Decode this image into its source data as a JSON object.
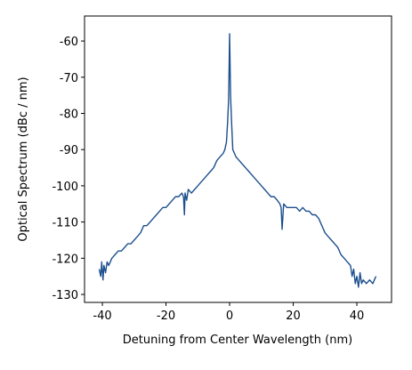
{
  "chart_data": {
    "type": "line",
    "x_label": "Detuning from Center Wavelength (nm)",
    "y_label": "Optical Spectrum  (dBc / nm)",
    "xlim": [
      -45.6,
      50.9
    ],
    "ylim": [
      -132.2,
      -53.1
    ],
    "xticks": [
      -40,
      -20,
      0,
      20,
      40
    ],
    "yticks": [
      -60,
      -70,
      -80,
      -90,
      -100,
      -110,
      -120,
      -130
    ],
    "x": [
      -41,
      -40.5,
      -40.2,
      -39.8,
      -39.5,
      -39,
      -38.5,
      -38,
      -37,
      -36,
      -35,
      -34,
      -33,
      -32,
      -31,
      -30,
      -29,
      -28,
      -27,
      -26,
      -25,
      -24,
      -23,
      -22,
      -21,
      -20,
      -19,
      -18,
      -17,
      -16,
      -15,
      -14.5,
      -14.2,
      -14,
      -13.5,
      -13,
      -12,
      -11,
      -10,
      -9,
      -8,
      -7,
      -6,
      -5,
      -4,
      -3,
      -2,
      -1.5,
      -1,
      -0.6,
      -0.3,
      0,
      0.3,
      0.6,
      1,
      1.5,
      2,
      3,
      4,
      5,
      6,
      7,
      8,
      9,
      10,
      11,
      12,
      13,
      14,
      15,
      15.8,
      16.2,
      16.5,
      17,
      18,
      19,
      20,
      21,
      22,
      23,
      24,
      25,
      26,
      27,
      28,
      29,
      30,
      31,
      32,
      33,
      34,
      35,
      36,
      37,
      38,
      38.5,
      39,
      39.5,
      40,
      40.5,
      41,
      41.5,
      42,
      43,
      44,
      45,
      46
    ],
    "series": [
      {
        "name": "spectrum",
        "color": "#1c4f8e",
        "values": [
          -123,
          -125,
          -121,
          -126,
          -122,
          -124,
          -121,
          -122,
          -120,
          -119,
          -118,
          -118,
          -117,
          -116,
          -116,
          -115,
          -114,
          -113,
          -111,
          -111,
          -110,
          -109,
          -108,
          -107,
          -106,
          -106,
          -105,
          -104,
          -103,
          -103,
          -102,
          -103,
          -108,
          -102,
          -104,
          -101,
          -102,
          -101,
          -100,
          -99,
          -98,
          -97,
          -96,
          -95,
          -93,
          -92,
          -91,
          -90,
          -88,
          -82,
          -76,
          -58,
          -75,
          -82,
          -90,
          -91,
          -92,
          -93,
          -94,
          -95,
          -96,
          -97,
          -98,
          -99,
          -100,
          -101,
          -102,
          -103,
          -103,
          -104,
          -105,
          -106,
          -112,
          -105,
          -106,
          -106,
          -106,
          -106,
          -107,
          -106,
          -107,
          -107,
          -108,
          -108,
          -109,
          -111,
          -113,
          -114,
          -115,
          -116,
          -117,
          -119,
          -120,
          -121,
          -122,
          -125,
          -123,
          -127,
          -125,
          -128,
          -124,
          -127,
          -126,
          -127,
          -126,
          -127,
          -125
        ]
      }
    ]
  }
}
